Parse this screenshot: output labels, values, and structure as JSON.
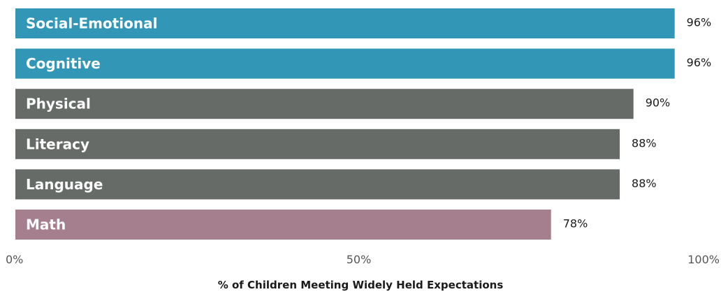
{
  "chart_data": {
    "type": "bar",
    "orientation": "horizontal",
    "title": "",
    "ylabel": "",
    "xlabel": "% of Children Meeting Widely Held Expectations",
    "xlim": [
      0,
      100
    ],
    "x_ticks": [
      {
        "value": 0,
        "label": "0%"
      },
      {
        "value": 50,
        "label": "50%"
      },
      {
        "value": 100,
        "label": "100%"
      }
    ],
    "grid": false,
    "legend": "none",
    "categories": [
      "Social-Emotional",
      "Cognitive",
      "Physical",
      "Literacy",
      "Language",
      "Math"
    ],
    "values": [
      96,
      96,
      90,
      88,
      88,
      78
    ],
    "value_labels": [
      "96%",
      "96%",
      "90%",
      "88%",
      "88%",
      "78%"
    ],
    "bar_colors": [
      "#3297b7",
      "#3297b7",
      "#666b68",
      "#666b68",
      "#666b68",
      "#a67f8e"
    ]
  }
}
